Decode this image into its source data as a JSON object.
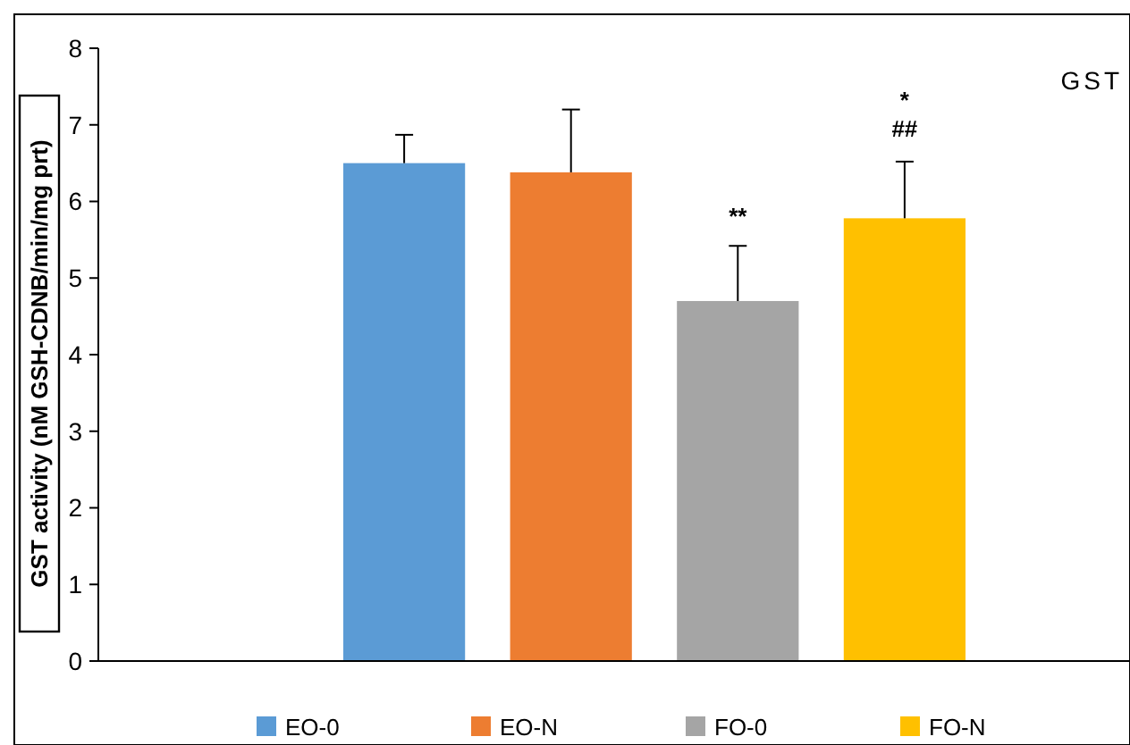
{
  "chart_data": {
    "type": "bar",
    "categories": [
      null
    ],
    "series": [
      {
        "name": "EO-0",
        "color": "#5b9bd5",
        "values": [
          6.5
        ],
        "errors": [
          [
            6.5,
            6.87
          ]
        ]
      },
      {
        "name": "EO-N",
        "color": "#ed7d31",
        "values": [
          6.38
        ],
        "errors": [
          [
            6.38,
            7.2
          ]
        ]
      },
      {
        "name": "FO-0",
        "color": "#a5a5a5",
        "values": [
          4.7
        ],
        "errors": [
          [
            4.7,
            5.42
          ]
        ]
      },
      {
        "name": "FO-N",
        "color": "#ffc000",
        "values": [
          5.78
        ],
        "errors": [
          [
            5.78,
            6.52
          ]
        ]
      }
    ],
    "ylabel": "GST activity (nM GSH-CDNB/min/mg prt)",
    "ylim": [
      0,
      8
    ],
    "yticks": [
      0,
      1,
      2,
      3,
      4,
      5,
      6,
      7,
      8
    ],
    "grid": false,
    "legend": "bottom",
    "annotations": [
      "GST",
      "**",
      "*",
      "##"
    ]
  }
}
